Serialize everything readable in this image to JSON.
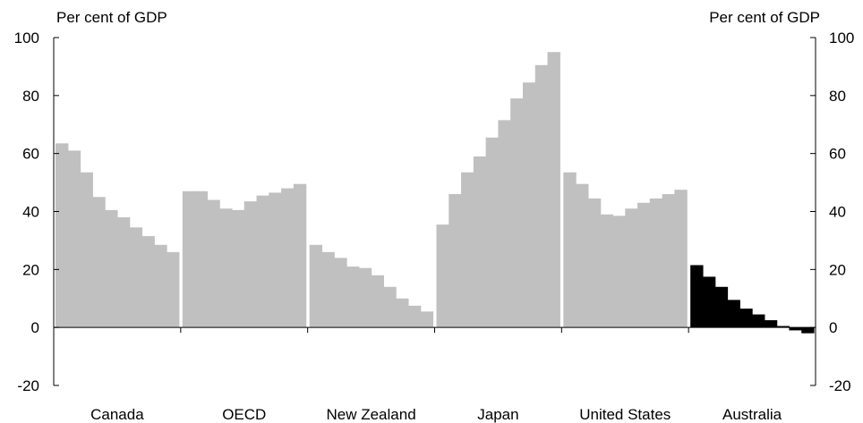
{
  "chart_data": {
    "type": "bar",
    "unit_label_left": "Per cent of GDP",
    "unit_label_right": "Per cent of GDP",
    "ylim": [
      -20,
      100
    ],
    "yticks": [
      -20,
      0,
      20,
      40,
      60,
      80,
      100
    ],
    "grid": false,
    "legend": "none",
    "colors": {
      "default": "#c0c0c0",
      "highlight": "#000000"
    },
    "groups": [
      {
        "name": "Canada",
        "color": "#c0c0c0",
        "values": [
          63.5,
          61,
          53.5,
          45,
          40.5,
          38,
          34.5,
          31.5,
          28.5,
          26
        ]
      },
      {
        "name": "OECD",
        "color": "#c0c0c0",
        "values": [
          47,
          47,
          44,
          41,
          40.5,
          43.5,
          45.5,
          46.5,
          48,
          49.5
        ]
      },
      {
        "name": "New Zealand",
        "color": "#c0c0c0",
        "values": [
          28.5,
          26,
          24,
          21,
          20.5,
          18,
          14,
          10,
          7.5,
          5.5
        ]
      },
      {
        "name": "Japan",
        "color": "#c0c0c0",
        "values": [
          35.5,
          46,
          53.5,
          59,
          65.5,
          71.5,
          79,
          84.5,
          90.5,
          95
        ]
      },
      {
        "name": "United States",
        "color": "#c0c0c0",
        "values": [
          53.5,
          49.5,
          44.5,
          39,
          38.5,
          41,
          43,
          44.5,
          46,
          47.5
        ]
      },
      {
        "name": "Australia",
        "color": "#000000",
        "values": [
          21.5,
          17.5,
          14,
          9.5,
          6.5,
          4.5,
          2.5,
          0.5,
          -1,
          -2
        ]
      }
    ]
  }
}
